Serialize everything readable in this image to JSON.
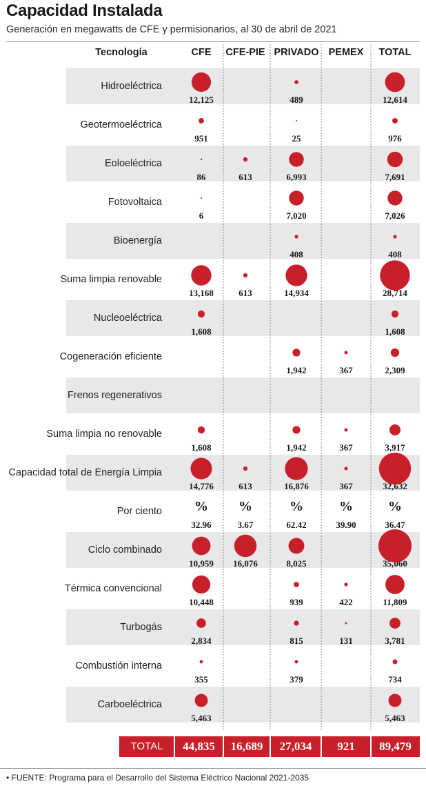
{
  "title": "Capacidad Instalada",
  "subtitle": "Generación en megawatts de CFE y permisionarios, al 30 de abril de 2021",
  "source": "• FUENTE: Programa para el Desarrollo del Sistema Eléctrico Nacional 2021-2035",
  "colors": {
    "dot": "#c8202a",
    "shade": "#e8e8e8",
    "total_bar": "#c8202a"
  },
  "chart_data": {
    "type": "table",
    "row_header": "Tecnología",
    "columns": [
      "CFE",
      "CFE-PIE",
      "PRIVADO",
      "PEMEX",
      "TOTAL"
    ],
    "rows": [
      {
        "label": "Hidroeléctrica",
        "values": [
          "12,125",
          "",
          "489",
          "",
          "12,614"
        ]
      },
      {
        "label": "Geotermoeléctrica",
        "values": [
          "951",
          "",
          "25",
          "",
          "976"
        ]
      },
      {
        "label": "Eoloeléctrica",
        "values": [
          "86",
          "613",
          "6,993",
          "",
          "7,691"
        ]
      },
      {
        "label": "Fotovoltaica",
        "values": [
          "6",
          "",
          "7,020",
          "",
          "7,026"
        ]
      },
      {
        "label": "Bioenergía",
        "values": [
          "",
          "",
          "408",
          "",
          "408"
        ]
      },
      {
        "label": "Suma limpia renovable",
        "values": [
          "13,168",
          "613",
          "14,934",
          "",
          "28,714"
        ]
      },
      {
        "label": "Nucleoeléctrica",
        "values": [
          "1,608",
          "",
          "",
          "",
          "1,608"
        ]
      },
      {
        "label": "Cogeneración eficiente",
        "values": [
          "",
          "",
          "1,942",
          "367",
          "2,309"
        ]
      },
      {
        "label": "Frenos regenerativos",
        "values": [
          "",
          "",
          "",
          "",
          ""
        ]
      },
      {
        "label": "Suma limpia no renovable",
        "values": [
          "1,608",
          "",
          "1,942",
          "367",
          "3,917"
        ]
      },
      {
        "label": "Capacidad total de Energía Limpia",
        "values": [
          "14,776",
          "613",
          "16,876",
          "367",
          "32,632"
        ]
      },
      {
        "label": "Por ciento",
        "percent": true,
        "symbol": "%",
        "values": [
          "32.96",
          "3.67",
          "62.42",
          "39.90",
          "36.47"
        ]
      },
      {
        "label": "Ciclo combinado",
        "values": [
          "10,959",
          "16,076",
          "8,025",
          "",
          "35,060"
        ]
      },
      {
        "label": "Térmica convencional",
        "values": [
          "10,448",
          "",
          "939",
          "422",
          "11,809"
        ]
      },
      {
        "label": "Turbogás",
        "values": [
          "2,834",
          "",
          "815",
          "131",
          "3,781"
        ]
      },
      {
        "label": "Combustión interna",
        "values": [
          "355",
          "",
          "379",
          "",
          "734"
        ]
      },
      {
        "label": "Carboeléctrica",
        "values": [
          "5,463",
          "",
          "",
          "",
          "5,463"
        ]
      }
    ],
    "totals": {
      "label": "TOTAL",
      "values": [
        "44,835",
        "16,689",
        "27,034",
        "921",
        "89,479"
      ]
    }
  }
}
